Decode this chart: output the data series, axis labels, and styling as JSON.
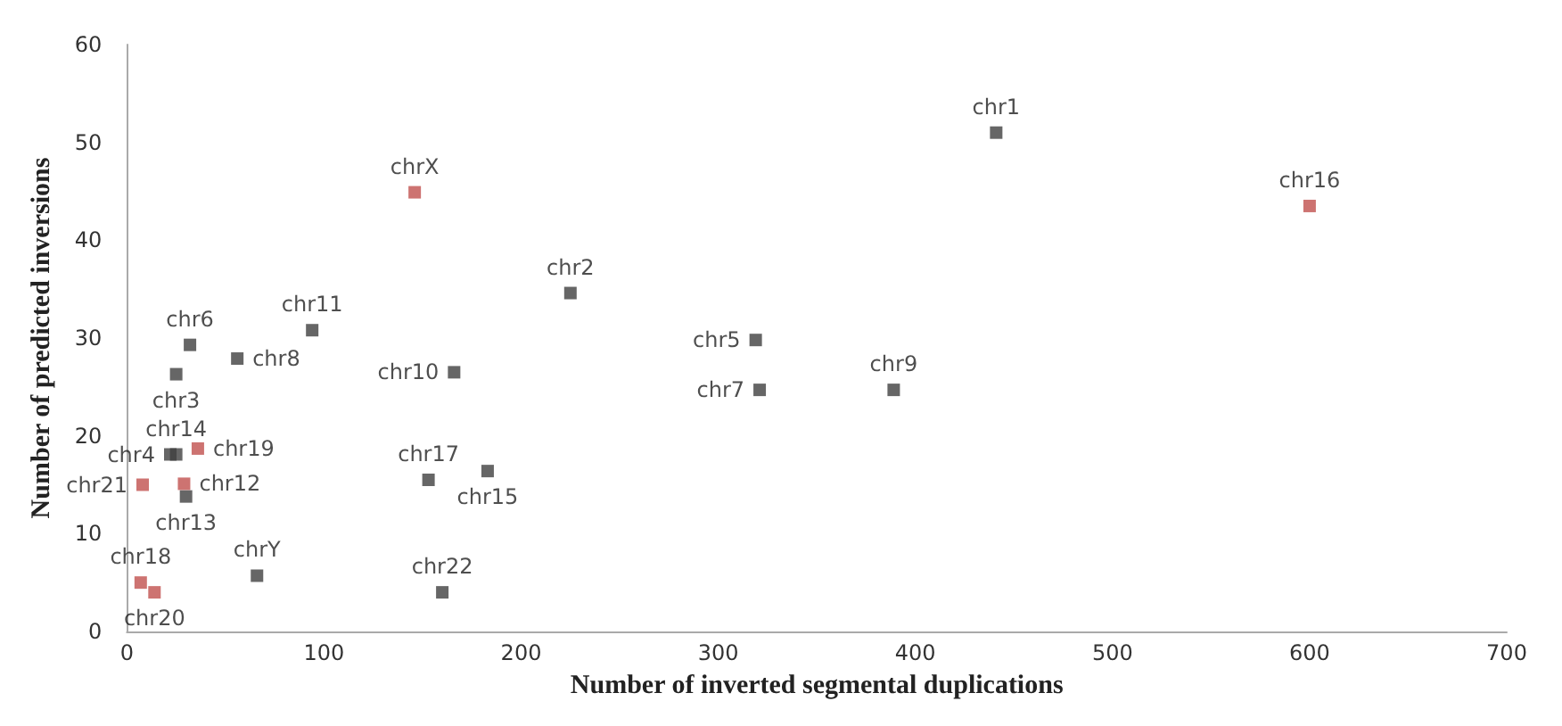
{
  "chart_data": {
    "type": "scatter",
    "xlabel": "Number of inverted segmental duplications",
    "ylabel": "Number of predicted inversions",
    "xlim": [
      0,
      700
    ],
    "xticks": [
      0,
      100,
      200,
      300,
      400,
      500,
      600,
      700
    ],
    "ylim": [
      0,
      60
    ],
    "yticks": [
      0,
      10,
      20,
      30,
      40,
      50,
      60
    ],
    "grid": false,
    "marker": "square",
    "series": [
      {
        "color": "#404040",
        "x": [
          441,
          225,
          319,
          321,
          389,
          166,
          153,
          183,
          160,
          32,
          25,
          56,
          94,
          25,
          22,
          30,
          66
        ],
        "values": [
          51.0,
          34.6,
          29.8,
          24.7,
          24.7,
          26.5,
          15.5,
          16.4,
          4.0,
          29.3,
          26.3,
          27.9,
          30.8,
          18.1,
          18.1,
          13.8,
          5.7
        ],
        "value_labels": [
          "chr1",
          "chr2",
          "chr5",
          "chr7",
          "chr9",
          "chr10",
          "chr17",
          "chr15",
          "chr22",
          "chr6",
          "chr3",
          "chr8",
          "chr11",
          "chr14",
          "chr4",
          "chr13",
          "chrY"
        ]
      },
      {
        "color": "#c0504d",
        "x": [
          146,
          600,
          36,
          8,
          29,
          7,
          14
        ],
        "values": [
          44.9,
          43.5,
          18.7,
          15.0,
          15.1,
          5.0,
          4.0
        ],
        "value_labels": [
          "chrX",
          "chr16",
          "chr19",
          "chr21",
          "chr12",
          "chr18",
          "chr20"
        ]
      }
    ]
  }
}
